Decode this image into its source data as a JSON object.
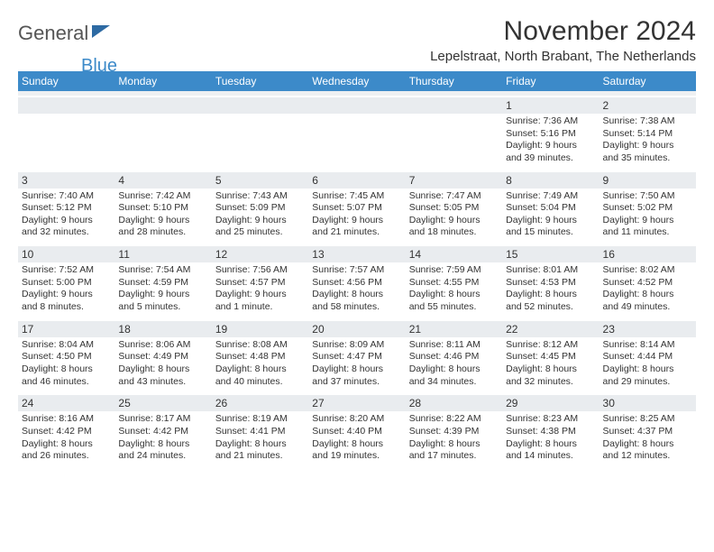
{
  "logo": {
    "text_general": "General",
    "text_blue": "Blue"
  },
  "header": {
    "month_title": "November 2024",
    "location": "Lepelstraat, North Brabant, The Netherlands"
  },
  "days_of_week": [
    "Sunday",
    "Monday",
    "Tuesday",
    "Wednesday",
    "Thursday",
    "Friday",
    "Saturday"
  ],
  "colors": {
    "header_bar": "#3c8ac9",
    "date_row_bg": "#e9ecef",
    "text": "#333333",
    "logo_gray": "#555555",
    "logo_blue": "#3c8ac9",
    "logo_triangle": "#2d6aa3"
  },
  "typography": {
    "month_title_fontsize": 30,
    "location_fontsize": 15,
    "dow_fontsize": 12,
    "date_fontsize": 12,
    "cell_fontsize": 10.5
  },
  "weeks": [
    {
      "dates": [
        "",
        "",
        "",
        "",
        "",
        "1",
        "2"
      ],
      "cells": [
        null,
        null,
        null,
        null,
        null,
        {
          "sunrise": "Sunrise: 7:36 AM",
          "sunset": "Sunset: 5:16 PM",
          "daylight1": "Daylight: 9 hours",
          "daylight2": "and 39 minutes."
        },
        {
          "sunrise": "Sunrise: 7:38 AM",
          "sunset": "Sunset: 5:14 PM",
          "daylight1": "Daylight: 9 hours",
          "daylight2": "and 35 minutes."
        }
      ]
    },
    {
      "dates": [
        "3",
        "4",
        "5",
        "6",
        "7",
        "8",
        "9"
      ],
      "cells": [
        {
          "sunrise": "Sunrise: 7:40 AM",
          "sunset": "Sunset: 5:12 PM",
          "daylight1": "Daylight: 9 hours",
          "daylight2": "and 32 minutes."
        },
        {
          "sunrise": "Sunrise: 7:42 AM",
          "sunset": "Sunset: 5:10 PM",
          "daylight1": "Daylight: 9 hours",
          "daylight2": "and 28 minutes."
        },
        {
          "sunrise": "Sunrise: 7:43 AM",
          "sunset": "Sunset: 5:09 PM",
          "daylight1": "Daylight: 9 hours",
          "daylight2": "and 25 minutes."
        },
        {
          "sunrise": "Sunrise: 7:45 AM",
          "sunset": "Sunset: 5:07 PM",
          "daylight1": "Daylight: 9 hours",
          "daylight2": "and 21 minutes."
        },
        {
          "sunrise": "Sunrise: 7:47 AM",
          "sunset": "Sunset: 5:05 PM",
          "daylight1": "Daylight: 9 hours",
          "daylight2": "and 18 minutes."
        },
        {
          "sunrise": "Sunrise: 7:49 AM",
          "sunset": "Sunset: 5:04 PM",
          "daylight1": "Daylight: 9 hours",
          "daylight2": "and 15 minutes."
        },
        {
          "sunrise": "Sunrise: 7:50 AM",
          "sunset": "Sunset: 5:02 PM",
          "daylight1": "Daylight: 9 hours",
          "daylight2": "and 11 minutes."
        }
      ]
    },
    {
      "dates": [
        "10",
        "11",
        "12",
        "13",
        "14",
        "15",
        "16"
      ],
      "cells": [
        {
          "sunrise": "Sunrise: 7:52 AM",
          "sunset": "Sunset: 5:00 PM",
          "daylight1": "Daylight: 9 hours",
          "daylight2": "and 8 minutes."
        },
        {
          "sunrise": "Sunrise: 7:54 AM",
          "sunset": "Sunset: 4:59 PM",
          "daylight1": "Daylight: 9 hours",
          "daylight2": "and 5 minutes."
        },
        {
          "sunrise": "Sunrise: 7:56 AM",
          "sunset": "Sunset: 4:57 PM",
          "daylight1": "Daylight: 9 hours",
          "daylight2": "and 1 minute."
        },
        {
          "sunrise": "Sunrise: 7:57 AM",
          "sunset": "Sunset: 4:56 PM",
          "daylight1": "Daylight: 8 hours",
          "daylight2": "and 58 minutes."
        },
        {
          "sunrise": "Sunrise: 7:59 AM",
          "sunset": "Sunset: 4:55 PM",
          "daylight1": "Daylight: 8 hours",
          "daylight2": "and 55 minutes."
        },
        {
          "sunrise": "Sunrise: 8:01 AM",
          "sunset": "Sunset: 4:53 PM",
          "daylight1": "Daylight: 8 hours",
          "daylight2": "and 52 minutes."
        },
        {
          "sunrise": "Sunrise: 8:02 AM",
          "sunset": "Sunset: 4:52 PM",
          "daylight1": "Daylight: 8 hours",
          "daylight2": "and 49 minutes."
        }
      ]
    },
    {
      "dates": [
        "17",
        "18",
        "19",
        "20",
        "21",
        "22",
        "23"
      ],
      "cells": [
        {
          "sunrise": "Sunrise: 8:04 AM",
          "sunset": "Sunset: 4:50 PM",
          "daylight1": "Daylight: 8 hours",
          "daylight2": "and 46 minutes."
        },
        {
          "sunrise": "Sunrise: 8:06 AM",
          "sunset": "Sunset: 4:49 PM",
          "daylight1": "Daylight: 8 hours",
          "daylight2": "and 43 minutes."
        },
        {
          "sunrise": "Sunrise: 8:08 AM",
          "sunset": "Sunset: 4:48 PM",
          "daylight1": "Daylight: 8 hours",
          "daylight2": "and 40 minutes."
        },
        {
          "sunrise": "Sunrise: 8:09 AM",
          "sunset": "Sunset: 4:47 PM",
          "daylight1": "Daylight: 8 hours",
          "daylight2": "and 37 minutes."
        },
        {
          "sunrise": "Sunrise: 8:11 AM",
          "sunset": "Sunset: 4:46 PM",
          "daylight1": "Daylight: 8 hours",
          "daylight2": "and 34 minutes."
        },
        {
          "sunrise": "Sunrise: 8:12 AM",
          "sunset": "Sunset: 4:45 PM",
          "daylight1": "Daylight: 8 hours",
          "daylight2": "and 32 minutes."
        },
        {
          "sunrise": "Sunrise: 8:14 AM",
          "sunset": "Sunset: 4:44 PM",
          "daylight1": "Daylight: 8 hours",
          "daylight2": "and 29 minutes."
        }
      ]
    },
    {
      "dates": [
        "24",
        "25",
        "26",
        "27",
        "28",
        "29",
        "30"
      ],
      "cells": [
        {
          "sunrise": "Sunrise: 8:16 AM",
          "sunset": "Sunset: 4:42 PM",
          "daylight1": "Daylight: 8 hours",
          "daylight2": "and 26 minutes."
        },
        {
          "sunrise": "Sunrise: 8:17 AM",
          "sunset": "Sunset: 4:42 PM",
          "daylight1": "Daylight: 8 hours",
          "daylight2": "and 24 minutes."
        },
        {
          "sunrise": "Sunrise: 8:19 AM",
          "sunset": "Sunset: 4:41 PM",
          "daylight1": "Daylight: 8 hours",
          "daylight2": "and 21 minutes."
        },
        {
          "sunrise": "Sunrise: 8:20 AM",
          "sunset": "Sunset: 4:40 PM",
          "daylight1": "Daylight: 8 hours",
          "daylight2": "and 19 minutes."
        },
        {
          "sunrise": "Sunrise: 8:22 AM",
          "sunset": "Sunset: 4:39 PM",
          "daylight1": "Daylight: 8 hours",
          "daylight2": "and 17 minutes."
        },
        {
          "sunrise": "Sunrise: 8:23 AM",
          "sunset": "Sunset: 4:38 PM",
          "daylight1": "Daylight: 8 hours",
          "daylight2": "and 14 minutes."
        },
        {
          "sunrise": "Sunrise: 8:25 AM",
          "sunset": "Sunset: 4:37 PM",
          "daylight1": "Daylight: 8 hours",
          "daylight2": "and 12 minutes."
        }
      ]
    }
  ]
}
